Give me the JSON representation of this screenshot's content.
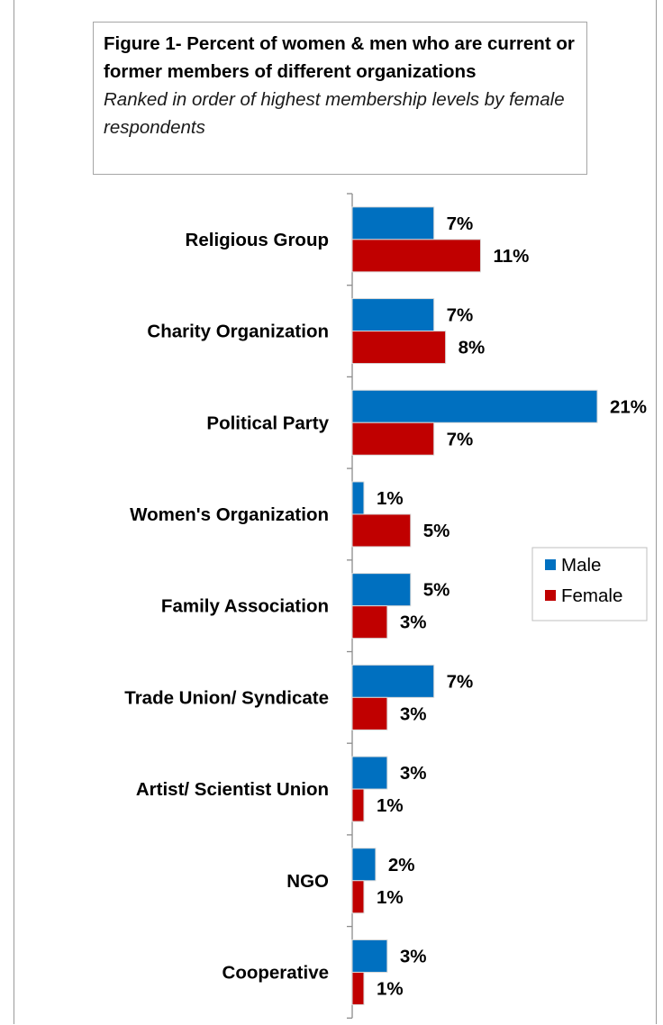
{
  "chart_data": {
    "type": "bar",
    "orientation": "horizontal",
    "title": "Figure 1- Percent of women & men who are current or former members of different organizations",
    "subtitle": "Ranked in order of highest membership levels by female respondents",
    "categories": [
      "Religious Group",
      "Charity Organization",
      "Political Party",
      "Women's Organization",
      "Family Association",
      "Trade Union/ Syndicate",
      "Artist/ Scientist Union",
      "NGO",
      "Cooperative"
    ],
    "series": [
      {
        "name": "Male",
        "color": "#0070c0",
        "values": [
          7,
          7,
          21,
          1,
          5,
          7,
          3,
          2,
          3
        ],
        "labels": [
          "7%",
          "7%",
          "21%",
          "1%",
          "5%",
          "7%",
          "3%",
          "2%",
          "3%"
        ]
      },
      {
        "name": "Female",
        "color": "#c00000",
        "values": [
          11,
          8,
          7,
          5,
          3,
          3,
          1,
          1,
          1
        ],
        "labels": [
          "11%",
          "8%",
          "7%",
          "5%",
          "3%",
          "3%",
          "1%",
          "1%",
          "1%"
        ]
      }
    ],
    "unit": "%",
    "xlim": [
      0,
      21
    ],
    "grid": false,
    "legend_position": "right"
  }
}
